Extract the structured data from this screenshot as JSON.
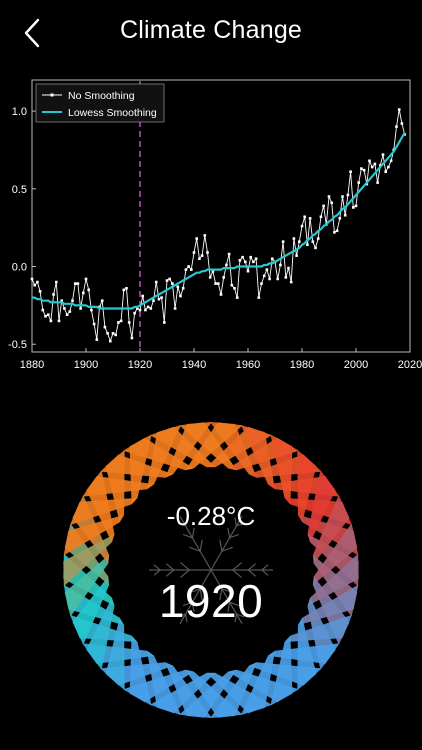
{
  "header": {
    "title": "Climate Change",
    "back_icon": "chevron-left-icon"
  },
  "chart_data": {
    "type": "line",
    "x": [
      1880,
      1881,
      1882,
      1883,
      1884,
      1885,
      1886,
      1887,
      1888,
      1889,
      1890,
      1891,
      1892,
      1893,
      1894,
      1895,
      1896,
      1897,
      1898,
      1899,
      1900,
      1901,
      1902,
      1903,
      1904,
      1905,
      1906,
      1907,
      1908,
      1909,
      1910,
      1911,
      1912,
      1913,
      1914,
      1915,
      1916,
      1917,
      1918,
      1919,
      1920,
      1921,
      1922,
      1923,
      1924,
      1925,
      1926,
      1927,
      1928,
      1929,
      1930,
      1931,
      1932,
      1933,
      1934,
      1935,
      1936,
      1937,
      1938,
      1939,
      1940,
      1941,
      1942,
      1943,
      1944,
      1945,
      1946,
      1947,
      1948,
      1949,
      1950,
      1951,
      1952,
      1953,
      1954,
      1955,
      1956,
      1957,
      1958,
      1959,
      1960,
      1961,
      1962,
      1963,
      1964,
      1965,
      1966,
      1967,
      1968,
      1969,
      1970,
      1971,
      1972,
      1973,
      1974,
      1975,
      1976,
      1977,
      1978,
      1979,
      1980,
      1981,
      1982,
      1983,
      1984,
      1985,
      1986,
      1987,
      1988,
      1989,
      1990,
      1991,
      1992,
      1993,
      1994,
      1995,
      1996,
      1997,
      1998,
      1999,
      2000,
      2001,
      2002,
      2003,
      2004,
      2005,
      2006,
      2007,
      2008,
      2009,
      2010,
      2011,
      2012,
      2013,
      2014,
      2015,
      2016,
      2017,
      2018
    ],
    "series": [
      {
        "name": "No Smoothing",
        "color": "#ffffff",
        "values": [
          -0.08,
          -0.12,
          -0.1,
          -0.16,
          -0.28,
          -0.32,
          -0.31,
          -0.35,
          -0.18,
          -0.1,
          -0.35,
          -0.22,
          -0.27,
          -0.31,
          -0.29,
          -0.22,
          -0.11,
          -0.11,
          -0.27,
          -0.17,
          -0.08,
          -0.15,
          -0.28,
          -0.37,
          -0.47,
          -0.26,
          -0.22,
          -0.39,
          -0.43,
          -0.48,
          -0.43,
          -0.44,
          -0.36,
          -0.35,
          -0.15,
          -0.14,
          -0.36,
          -0.46,
          -0.3,
          -0.27,
          -0.28,
          -0.19,
          -0.28,
          -0.26,
          -0.27,
          -0.22,
          -0.1,
          -0.21,
          -0.2,
          -0.36,
          -0.09,
          -0.08,
          -0.11,
          -0.27,
          -0.13,
          -0.19,
          -0.14,
          -0.02,
          -0.0,
          -0.02,
          0.09,
          0.18,
          0.05,
          0.07,
          0.2,
          0.09,
          -0.07,
          -0.03,
          -0.11,
          -0.11,
          -0.18,
          -0.07,
          0.01,
          0.08,
          -0.12,
          -0.14,
          -0.2,
          0.04,
          0.06,
          0.03,
          -0.03,
          0.06,
          0.03,
          0.05,
          -0.2,
          -0.11,
          -0.06,
          -0.02,
          -0.08,
          0.05,
          0.03,
          -0.08,
          0.01,
          0.16,
          -0.07,
          -0.01,
          -0.1,
          0.18,
          0.07,
          0.16,
          0.26,
          0.32,
          0.14,
          0.31,
          0.16,
          0.12,
          0.18,
          0.32,
          0.39,
          0.27,
          0.45,
          0.41,
          0.22,
          0.23,
          0.31,
          0.45,
          0.33,
          0.46,
          0.61,
          0.38,
          0.39,
          0.54,
          0.63,
          0.62,
          0.53,
          0.68,
          0.64,
          0.66,
          0.54,
          0.65,
          0.72,
          0.61,
          0.64,
          0.68,
          0.75,
          0.9,
          1.01,
          0.92,
          0.85
        ]
      },
      {
        "name": "Lowess Smoothing",
        "color": "#28c8d0",
        "values": [
          -0.2,
          -0.2,
          -0.21,
          -0.21,
          -0.22,
          -0.22,
          -0.22,
          -0.23,
          -0.23,
          -0.23,
          -0.23,
          -0.23,
          -0.24,
          -0.24,
          -0.24,
          -0.24,
          -0.25,
          -0.25,
          -0.25,
          -0.25,
          -0.25,
          -0.26,
          -0.26,
          -0.26,
          -0.26,
          -0.27,
          -0.27,
          -0.27,
          -0.27,
          -0.27,
          -0.27,
          -0.27,
          -0.27,
          -0.27,
          -0.27,
          -0.27,
          -0.27,
          -0.27,
          -0.26,
          -0.26,
          -0.25,
          -0.24,
          -0.23,
          -0.22,
          -0.21,
          -0.2,
          -0.19,
          -0.18,
          -0.17,
          -0.16,
          -0.15,
          -0.14,
          -0.13,
          -0.12,
          -0.11,
          -0.1,
          -0.09,
          -0.08,
          -0.07,
          -0.06,
          -0.05,
          -0.04,
          -0.04,
          -0.03,
          -0.03,
          -0.02,
          -0.02,
          -0.02,
          -0.02,
          -0.02,
          -0.02,
          -0.01,
          -0.01,
          -0.01,
          -0.01,
          -0.01,
          -0.0,
          0.0,
          0.0,
          0.0,
          0.0,
          0.0,
          0.0,
          0.0,
          0.0,
          0.0,
          0.01,
          0.01,
          0.02,
          0.02,
          0.03,
          0.04,
          0.05,
          0.06,
          0.07,
          0.08,
          0.09,
          0.1,
          0.11,
          0.12,
          0.14,
          0.15,
          0.17,
          0.18,
          0.2,
          0.21,
          0.23,
          0.24,
          0.26,
          0.27,
          0.29,
          0.3,
          0.32,
          0.33,
          0.35,
          0.37,
          0.38,
          0.4,
          0.42,
          0.44,
          0.46,
          0.48,
          0.5,
          0.52,
          0.54,
          0.56,
          0.58,
          0.6,
          0.62,
          0.64,
          0.66,
          0.68,
          0.7,
          0.72,
          0.74,
          0.77,
          0.8,
          0.83,
          0.86
        ]
      }
    ],
    "xlim": [
      1880,
      2020
    ],
    "ylim": [
      -0.55,
      1.2
    ],
    "xticks": [
      1880,
      1900,
      1920,
      1940,
      1960,
      1980,
      2000,
      2020
    ],
    "yticks": [
      -0.5,
      0.0,
      0.5,
      1.0
    ],
    "ytick_labels": [
      "-0.5",
      "0.0",
      "0.5",
      "1.0"
    ],
    "marker_year": 1920,
    "marker_color": "#d060d8",
    "legend": [
      "No Smoothing",
      "Lowess Smoothing"
    ],
    "legend_position": "top-left",
    "background": "#000000"
  },
  "dial": {
    "temperature": "-0.28°C",
    "year": "1920",
    "icon": "snowflake-icon",
    "warm_color": "#e8392f",
    "mid_warm_color": "#f07c20",
    "cool_color": "#4aa0e8",
    "teal_color": "#1ccfc8"
  }
}
